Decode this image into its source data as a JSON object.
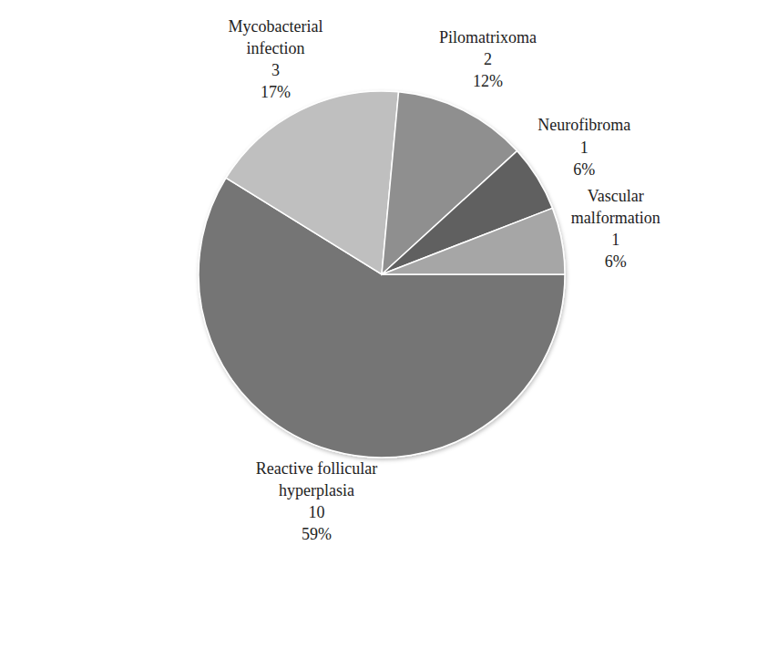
{
  "chart_data": {
    "type": "pie",
    "categories": [
      "Reactive follicular hyperplasia",
      "Mycobacterial infection",
      "Pilomatrixoma",
      "Neurofibroma",
      "Vascular malformation"
    ],
    "values": [
      10,
      3,
      2,
      1,
      1
    ],
    "percentage_labels": [
      "59%",
      "17%",
      "12%",
      "6%",
      "6%"
    ],
    "colors": [
      "#747474",
      "#bfbfbf",
      "#8f8f8f",
      "#606060",
      "#a6a6a6"
    ],
    "data_labels": true
  }
}
